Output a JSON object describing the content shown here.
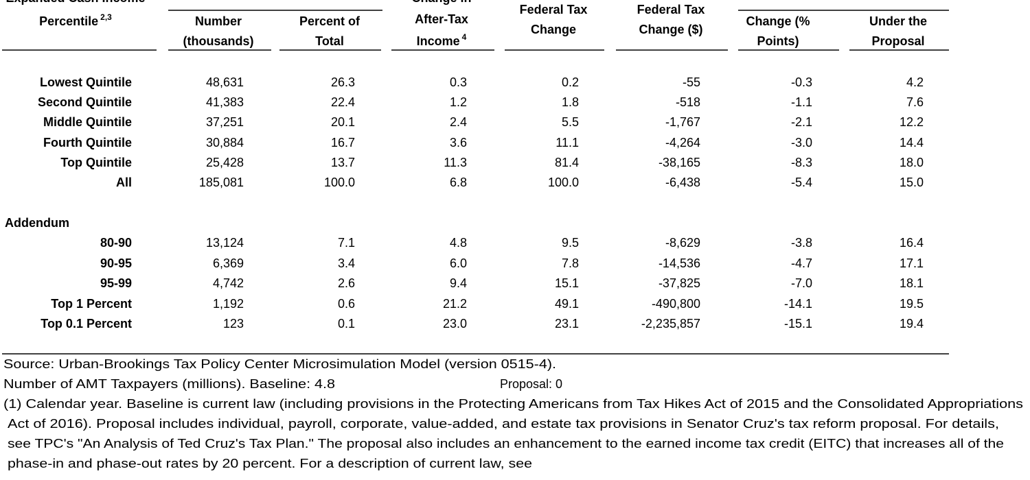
{
  "header": {
    "columns": [
      {
        "lines": [
          "Expanded Cash Income",
          "Percentile"
        ],
        "sup": "2,3"
      },
      {
        "lines": [
          "Number",
          "(thousands)"
        ]
      },
      {
        "lines": [
          "Percent of",
          "Total"
        ]
      },
      {
        "lines": [
          "Change in",
          "After-Tax",
          "Income"
        ],
        "sup": "4"
      },
      {
        "lines": [
          "Federal Tax",
          "Change"
        ]
      },
      {
        "lines": [
          "Federal Tax",
          "Change ($)"
        ]
      },
      {
        "lines": [
          "Change (%",
          "Points)"
        ]
      },
      {
        "lines": [
          "Under the",
          "Proposal"
        ]
      }
    ]
  },
  "table": {
    "rows": [
      [
        "Lowest Quintile",
        "48,631",
        "26.3",
        "0.3",
        "0.2",
        "-55",
        "-0.3",
        "4.2"
      ],
      [
        "Second Quintile",
        "41,383",
        "22.4",
        "1.2",
        "1.8",
        "-518",
        "-1.1",
        "7.6"
      ],
      [
        "Middle Quintile",
        "37,251",
        "20.1",
        "2.4",
        "5.5",
        "-1,767",
        "-2.1",
        "12.2"
      ],
      [
        "Fourth Quintile",
        "30,884",
        "16.7",
        "3.6",
        "11.1",
        "-4,264",
        "-3.0",
        "14.4"
      ],
      [
        "Top Quintile",
        "25,428",
        "13.7",
        "11.3",
        "81.4",
        "-38,165",
        "-8.3",
        "18.0"
      ],
      [
        "All",
        "185,081",
        "100.0",
        "6.8",
        "100.0",
        "-6,438",
        "-5.4",
        "15.0"
      ]
    ],
    "addendum_title": "Addendum",
    "addendum_rows": [
      [
        "80-90",
        "13,124",
        "7.1",
        "4.8",
        "9.5",
        "-8,629",
        "-3.8",
        "16.4"
      ],
      [
        "90-95",
        "6,369",
        "3.4",
        "6.0",
        "7.8",
        "-14,536",
        "-4.7",
        "17.1"
      ],
      [
        "95-99",
        "4,742",
        "2.6",
        "9.4",
        "15.1",
        "-37,825",
        "-7.0",
        "18.1"
      ],
      [
        "Top 1 Percent",
        "1,192",
        "0.6",
        "21.2",
        "49.1",
        "-490,800",
        "-14.1",
        "19.5"
      ],
      [
        "Top 0.1 Percent",
        "123",
        "0.1",
        "23.0",
        "23.1",
        "-2,235,857",
        "-15.1",
        "19.4"
      ]
    ]
  },
  "footnotes": {
    "source": "Source: Urban-Brookings Tax Policy Center Microsimulation Model (version 0515-4).",
    "amt_baseline": "Number of AMT Taxpayers (millions).  Baseline: 4.8",
    "amt_proposal": "Proposal: 0",
    "note_lines": [
      "(1) Calendar year. Baseline is current law (including provisions in the Protecting Americans from Tax Hikes Act of 2015 and the Consolidated Appropriations",
      "Act of 2016). Proposal includes individual, payroll, corporate, value-added, and estate tax provisions in Senator Cruz's tax reform proposal. For details,",
      "see TPC's \"An Analysis of Ted Cruz's Tax Plan.\" The proposal also includes an enhancement to the earned income tax credit (EITC) that increases all of the",
      "phase-in and phase-out rates by 20 percent. For a description of current law, see"
    ]
  }
}
